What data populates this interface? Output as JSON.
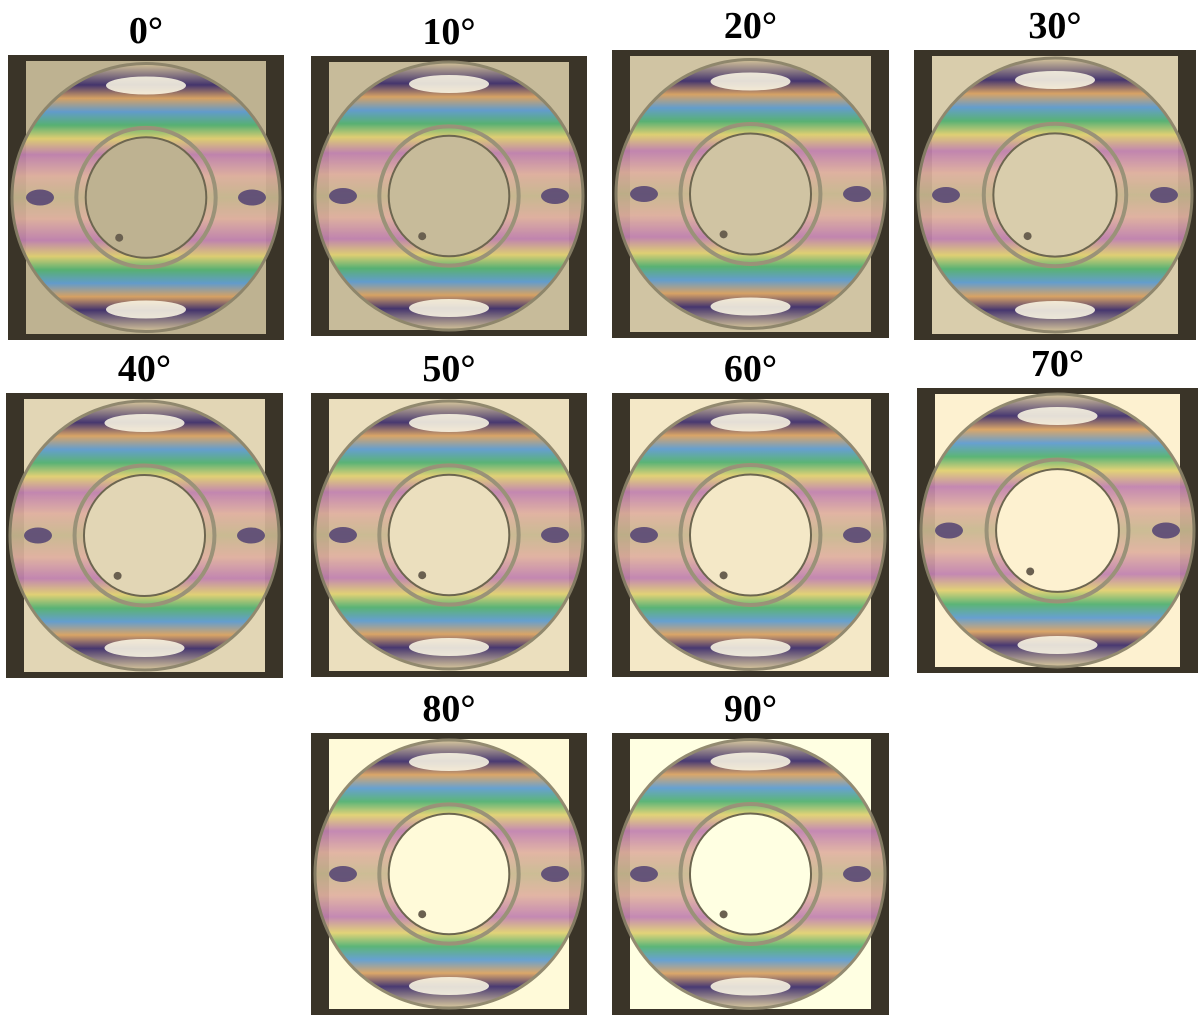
{
  "panels": [
    {
      "label": "0°"
    },
    {
      "label": "10°"
    },
    {
      "label": "20°"
    },
    {
      "label": "30°"
    },
    {
      "label": "40°"
    },
    {
      "label": "50°"
    },
    {
      "label": "60°"
    },
    {
      "label": "70°"
    },
    {
      "label": "80°"
    },
    {
      "label": "90°"
    }
  ]
}
